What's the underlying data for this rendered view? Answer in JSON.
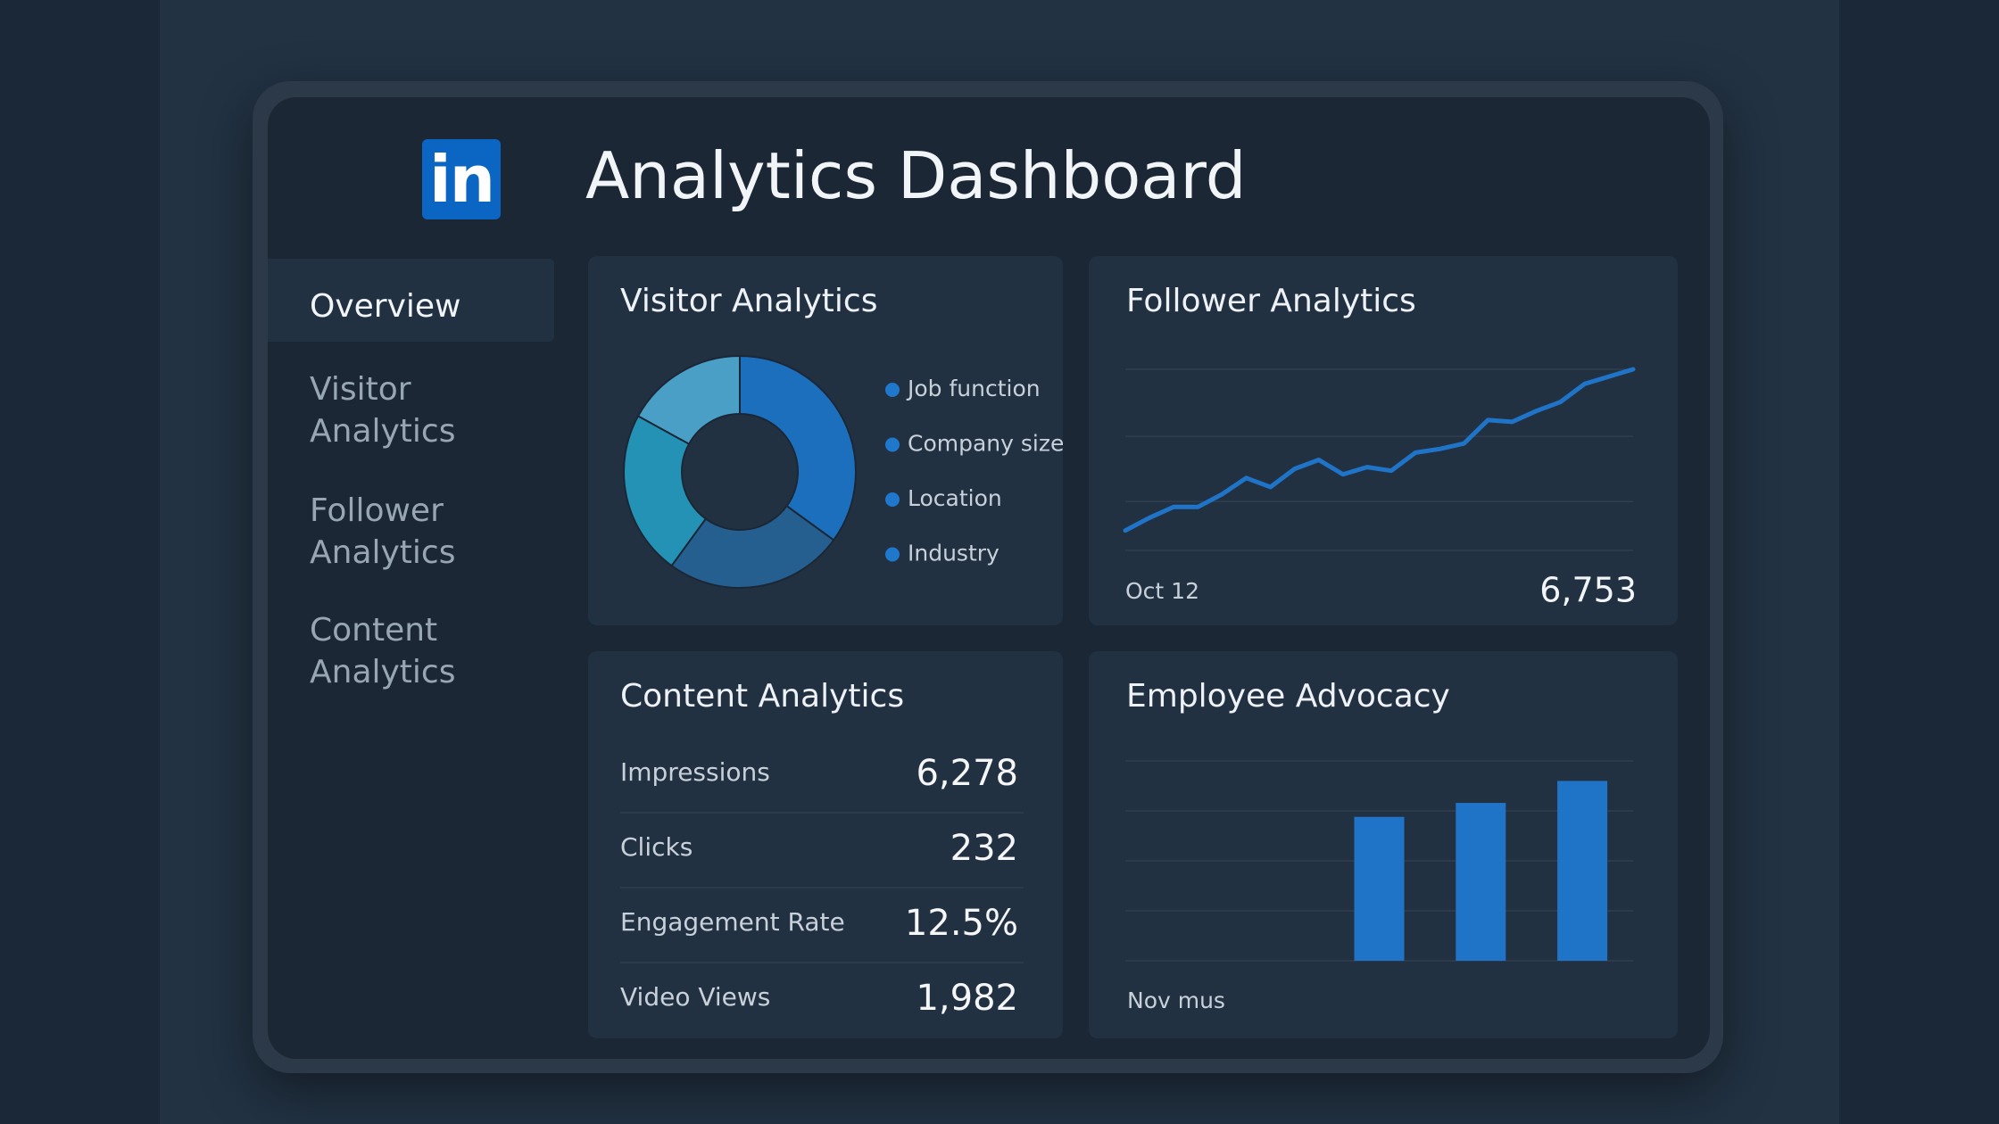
{
  "header": {
    "logo": "in",
    "title": "Analytics Dashboard"
  },
  "nav": {
    "items": [
      "Overview",
      "Visitor Analytics",
      "Follower Analytics",
      "Content Analytics"
    ],
    "active": 0
  },
  "visitor_analytics": {
    "title": "Visitor Analytics",
    "chart_data": {
      "type": "donut",
      "categories": [
        "Job function",
        "Company size",
        "Location",
        "Industry"
      ],
      "values": [
        35,
        25,
        23,
        17
      ],
      "colors": [
        "#1b6fbd",
        "#255f8f",
        "#2392b5",
        "#4a9fc7"
      ],
      "legend_color": "#1f78cc"
    }
  },
  "follower_analytics": {
    "title": "Follower Analytics",
    "chart_data": {
      "type": "line",
      "values": [
        11,
        18,
        24,
        24,
        31,
        40,
        35,
        45,
        50,
        42,
        46,
        44,
        54,
        56,
        59,
        72,
        71,
        77,
        82,
        92,
        96,
        100
      ],
      "ylim": [
        0,
        100
      ],
      "gridlines": [
        0,
        27,
        63,
        100
      ],
      "color": "#1f74c8",
      "x_label": "Oct 12",
      "value_label": "6,753"
    }
  },
  "content_analytics": {
    "title": "Content Analytics",
    "rows": [
      [
        "Impressions",
        "6,278"
      ],
      [
        "Clicks",
        "232"
      ],
      [
        "Engagement Rate",
        "12.5%"
      ],
      [
        "Video Views",
        "1,982"
      ]
    ]
  },
  "employee_advocacy": {
    "title": "Employee Advocacy",
    "chart_data": {
      "type": "bar",
      "values": [
        null,
        null,
        72,
        79,
        90
      ],
      "ylim": [
        0,
        100
      ],
      "gridlines": [
        0,
        25,
        50,
        75,
        100
      ],
      "color": "#1f74c8",
      "x_label": "Nov mus"
    }
  }
}
